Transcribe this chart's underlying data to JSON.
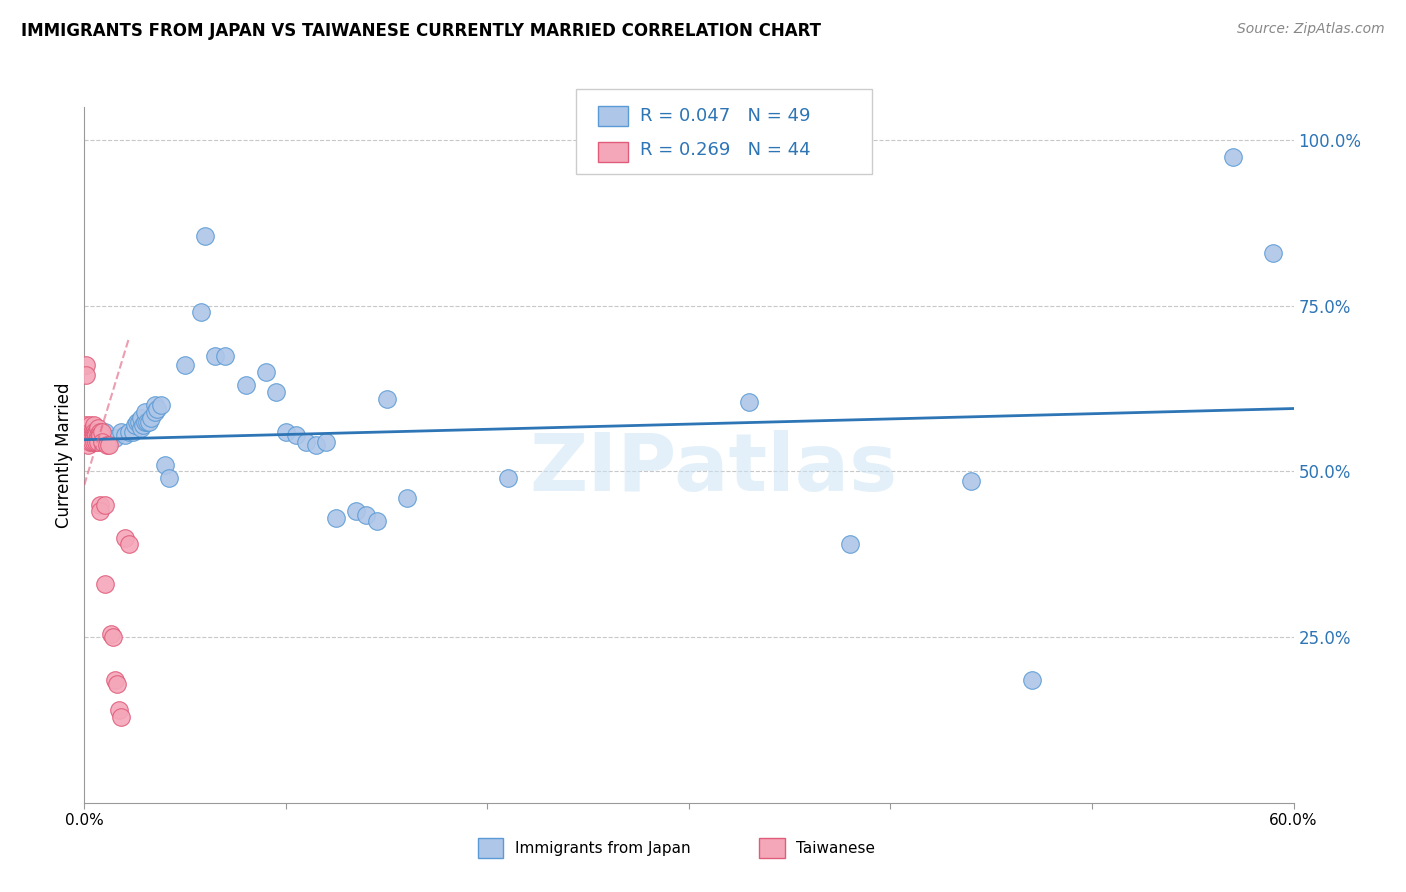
{
  "title": "IMMIGRANTS FROM JAPAN VS TAIWANESE CURRENTLY MARRIED CORRELATION CHART",
  "source": "Source: ZipAtlas.com",
  "ylabel": "Currently Married",
  "watermark": "ZIPatlas",
  "xlim": [
    0.0,
    0.6
  ],
  "ylim": [
    0.0,
    1.05
  ],
  "yticks": [
    0.25,
    0.5,
    0.75,
    1.0
  ],
  "ytick_labels": [
    "25.0%",
    "50.0%",
    "75.0%",
    "100.0%"
  ],
  "xticks": [
    0.0,
    0.1,
    0.2,
    0.3,
    0.4,
    0.5,
    0.6
  ],
  "xtick_labels": [
    "0.0%",
    "",
    "",
    "",
    "",
    "",
    "60.0%"
  ],
  "legend_R1": "R = 0.047",
  "legend_N1": "N = 49",
  "legend_R2": "R = 0.269",
  "legend_N2": "N = 44",
  "color_blue": "#aec6e8",
  "color_blue_edge": "#5b9bd5",
  "color_pink": "#f4a7b9",
  "color_pink_edge": "#e05c7a",
  "color_line_blue": "#2e75b6",
  "color_line_pink": "#e05c7a",
  "japan_x": [
    0.01,
    0.015,
    0.018,
    0.02,
    0.022,
    0.024,
    0.025,
    0.026,
    0.027,
    0.028,
    0.028,
    0.029,
    0.03,
    0.03,
    0.031,
    0.032,
    0.033,
    0.035,
    0.035,
    0.036,
    0.038,
    0.04,
    0.042,
    0.05,
    0.058,
    0.06,
    0.065,
    0.07,
    0.08,
    0.09,
    0.095,
    0.1,
    0.105,
    0.11,
    0.115,
    0.12,
    0.125,
    0.135,
    0.14,
    0.145,
    0.15,
    0.16,
    0.21,
    0.33,
    0.38,
    0.44,
    0.47,
    0.57,
    0.59
  ],
  "japan_y": [
    0.56,
    0.55,
    0.56,
    0.555,
    0.56,
    0.56,
    0.57,
    0.575,
    0.575,
    0.565,
    0.58,
    0.57,
    0.575,
    0.59,
    0.575,
    0.575,
    0.58,
    0.6,
    0.59,
    0.595,
    0.6,
    0.51,
    0.49,
    0.66,
    0.74,
    0.855,
    0.675,
    0.675,
    0.63,
    0.65,
    0.62,
    0.56,
    0.555,
    0.545,
    0.54,
    0.545,
    0.43,
    0.44,
    0.435,
    0.425,
    0.61,
    0.46,
    0.49,
    0.605,
    0.39,
    0.485,
    0.185,
    0.975,
    0.83
  ],
  "taiwan_x": [
    0.001,
    0.001,
    0.001,
    0.002,
    0.002,
    0.002,
    0.003,
    0.003,
    0.003,
    0.003,
    0.004,
    0.004,
    0.004,
    0.004,
    0.005,
    0.005,
    0.005,
    0.005,
    0.005,
    0.006,
    0.006,
    0.006,
    0.007,
    0.007,
    0.007,
    0.007,
    0.008,
    0.008,
    0.008,
    0.008,
    0.009,
    0.009,
    0.01,
    0.01,
    0.011,
    0.012,
    0.013,
    0.014,
    0.015,
    0.016,
    0.017,
    0.018,
    0.02,
    0.022
  ],
  "taiwan_y": [
    0.66,
    0.645,
    0.57,
    0.56,
    0.555,
    0.54,
    0.57,
    0.56,
    0.555,
    0.545,
    0.56,
    0.555,
    0.55,
    0.545,
    0.57,
    0.56,
    0.555,
    0.55,
    0.545,
    0.56,
    0.555,
    0.545,
    0.565,
    0.555,
    0.55,
    0.545,
    0.56,
    0.555,
    0.45,
    0.44,
    0.56,
    0.545,
    0.33,
    0.45,
    0.54,
    0.54,
    0.255,
    0.25,
    0.185,
    0.18,
    0.14,
    0.13,
    0.4,
    0.39
  ]
}
